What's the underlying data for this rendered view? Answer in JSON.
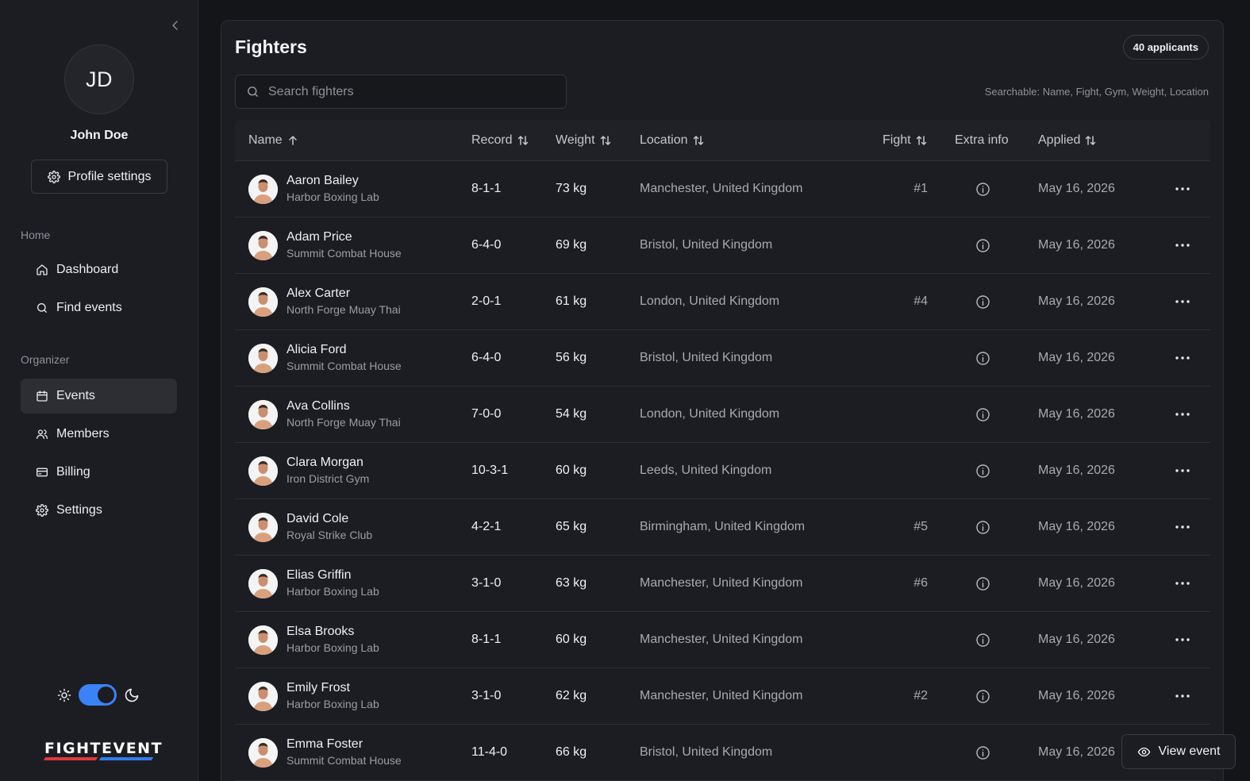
{
  "sidebar": {
    "user": {
      "initials": "JD",
      "name": "John Doe"
    },
    "profile_settings_label": "Profile settings",
    "sections": [
      {
        "title": "Home",
        "items": [
          {
            "label": "Dashboard",
            "icon": "home-icon"
          },
          {
            "label": "Find events",
            "icon": "search-icon"
          }
        ]
      },
      {
        "title": "Organizer",
        "items": [
          {
            "label": "Events",
            "icon": "calendar-icon",
            "active": true
          },
          {
            "label": "Members",
            "icon": "users-icon"
          },
          {
            "label": "Billing",
            "icon": "credit-card-icon"
          },
          {
            "label": "Settings",
            "icon": "gear-icon"
          }
        ]
      }
    ],
    "theme": {
      "mode": "dark"
    },
    "logo_text": "FIGHTEVENT"
  },
  "main": {
    "title": "Fighters",
    "count_badge": "40 applicants",
    "search": {
      "placeholder": "Search fighters",
      "hint": "Searchable: Name, Fight, Gym, Weight, Location"
    },
    "columns": [
      {
        "label": "Name",
        "sort": "asc"
      },
      {
        "label": "Record",
        "sort": "both"
      },
      {
        "label": "Weight",
        "sort": "both"
      },
      {
        "label": "Location",
        "sort": "both"
      },
      {
        "label": "Fight",
        "sort": "both"
      },
      {
        "label": "Extra info",
        "sort": "none"
      },
      {
        "label": "Applied",
        "sort": "both"
      }
    ],
    "rows": [
      {
        "name": "Aaron Bailey",
        "gym": "Harbor Boxing Lab",
        "record": "8-1-1",
        "weight": "73 kg",
        "location": "Manchester, United Kingdom",
        "fight": "#1",
        "applied": "May 16, 2026"
      },
      {
        "name": "Adam Price",
        "gym": "Summit Combat House",
        "record": "6-4-0",
        "weight": "69 kg",
        "location": "Bristol, United Kingdom",
        "fight": "",
        "applied": "May 16, 2026"
      },
      {
        "name": "Alex Carter",
        "gym": "North Forge Muay Thai",
        "record": "2-0-1",
        "weight": "61 kg",
        "location": "London, United Kingdom",
        "fight": "#4",
        "applied": "May 16, 2026"
      },
      {
        "name": "Alicia Ford",
        "gym": "Summit Combat House",
        "record": "6-4-0",
        "weight": "56 kg",
        "location": "Bristol, United Kingdom",
        "fight": "",
        "applied": "May 16, 2026"
      },
      {
        "name": "Ava Collins",
        "gym": "North Forge Muay Thai",
        "record": "7-0-0",
        "weight": "54 kg",
        "location": "London, United Kingdom",
        "fight": "",
        "applied": "May 16, 2026"
      },
      {
        "name": "Clara Morgan",
        "gym": "Iron District Gym",
        "record": "10-3-1",
        "weight": "60 kg",
        "location": "Leeds, United Kingdom",
        "fight": "",
        "applied": "May 16, 2026"
      },
      {
        "name": "David Cole",
        "gym": "Royal Strike Club",
        "record": "4-2-1",
        "weight": "65 kg",
        "location": "Birmingham, United Kingdom",
        "fight": "#5",
        "applied": "May 16, 2026"
      },
      {
        "name": "Elias Griffin",
        "gym": "Harbor Boxing Lab",
        "record": "3-1-0",
        "weight": "63 kg",
        "location": "Manchester, United Kingdom",
        "fight": "#6",
        "applied": "May 16, 2026"
      },
      {
        "name": "Elsa Brooks",
        "gym": "Harbor Boxing Lab",
        "record": "8-1-1",
        "weight": "60 kg",
        "location": "Manchester, United Kingdom",
        "fight": "",
        "applied": "May 16, 2026"
      },
      {
        "name": "Emily Frost",
        "gym": "Harbor Boxing Lab",
        "record": "3-1-0",
        "weight": "62 kg",
        "location": "Manchester, United Kingdom",
        "fight": "#2",
        "applied": "May 16, 2026"
      },
      {
        "name": "Emma Foster",
        "gym": "Summit Combat House",
        "record": "11-4-0",
        "weight": "66 kg",
        "location": "Bristol, United Kingdom",
        "fight": "",
        "applied": "May 16, 2026"
      }
    ],
    "view_event_label": "View event"
  },
  "colors": {
    "accent": "#3b82f6",
    "logo_red": "#e2363f",
    "logo_blue": "#2f7ef0",
    "background": "#141519",
    "surface": "#1c1d22"
  }
}
